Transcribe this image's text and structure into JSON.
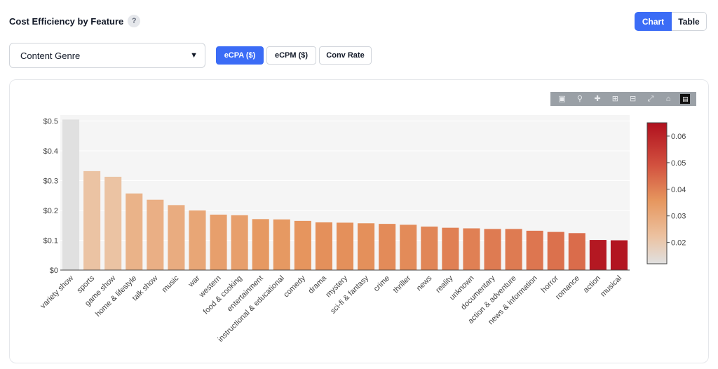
{
  "header": {
    "title": "Cost Efficiency by Feature",
    "help_label": "?"
  },
  "view_toggle": {
    "chart_label": "Chart",
    "table_label": "Table",
    "active": "Chart"
  },
  "feature_select": {
    "value": "Content Genre"
  },
  "metric_tabs": [
    {
      "label": "eCPA ($)",
      "active": true
    },
    {
      "label": "eCPM ($)",
      "active": false
    },
    {
      "label": "Conv Rate",
      "active": false
    }
  ],
  "modebar_icons": [
    "camera-icon",
    "zoom-icon",
    "pan-icon",
    "zoom-in-icon",
    "zoom-out-icon",
    "autoscale-icon",
    "home-icon",
    "logo-icon"
  ],
  "chart_data": {
    "type": "bar",
    "categories": [
      "variety show",
      "sports",
      "game show",
      "home & lifestyle",
      "talk show",
      "music",
      "war",
      "western",
      "food & cooking",
      "entertainment",
      "instructional & educational",
      "comedy",
      "drama",
      "mystery",
      "sci-fi & fantasy",
      "crime",
      "thriller",
      "news",
      "reality",
      "unknown",
      "documentary",
      "action & adventure",
      "news & information",
      "horror",
      "romance",
      "action",
      "musical"
    ],
    "values": [
      0.505,
      0.332,
      0.313,
      0.257,
      0.236,
      0.218,
      0.2,
      0.186,
      0.184,
      0.171,
      0.17,
      0.165,
      0.16,
      0.159,
      0.157,
      0.155,
      0.152,
      0.146,
      0.142,
      0.14,
      0.138,
      0.138,
      0.132,
      0.128,
      0.124,
      0.101,
      0.1
    ],
    "color_values": [
      0.012,
      0.022,
      0.022,
      0.027,
      0.028,
      0.029,
      0.031,
      0.033,
      0.033,
      0.035,
      0.035,
      0.036,
      0.037,
      0.037,
      0.037,
      0.038,
      0.038,
      0.039,
      0.04,
      0.04,
      0.041,
      0.041,
      0.042,
      0.043,
      0.044,
      0.063,
      0.064
    ],
    "ylim": [
      0,
      0.52
    ],
    "yticks": [
      "$0",
      "$0.1",
      "$0.2",
      "$0.3",
      "$0.4",
      "$0.5"
    ],
    "ytick_values": [
      0,
      0.1,
      0.2,
      0.3,
      0.4,
      0.5
    ],
    "colorbar": {
      "range": [
        0.012,
        0.065
      ],
      "ticks": [
        "0.02",
        "0.03",
        "0.04",
        "0.05",
        "0.06"
      ],
      "tick_values": [
        0.02,
        0.03,
        0.04,
        0.05,
        0.06
      ]
    },
    "colors": {
      "low": "#e0e0e0",
      "mid_low": "#ecc19f",
      "mid": "#e6965e",
      "mid_high": "#d2513f",
      "high": "#b0101e"
    },
    "grid": true
  }
}
